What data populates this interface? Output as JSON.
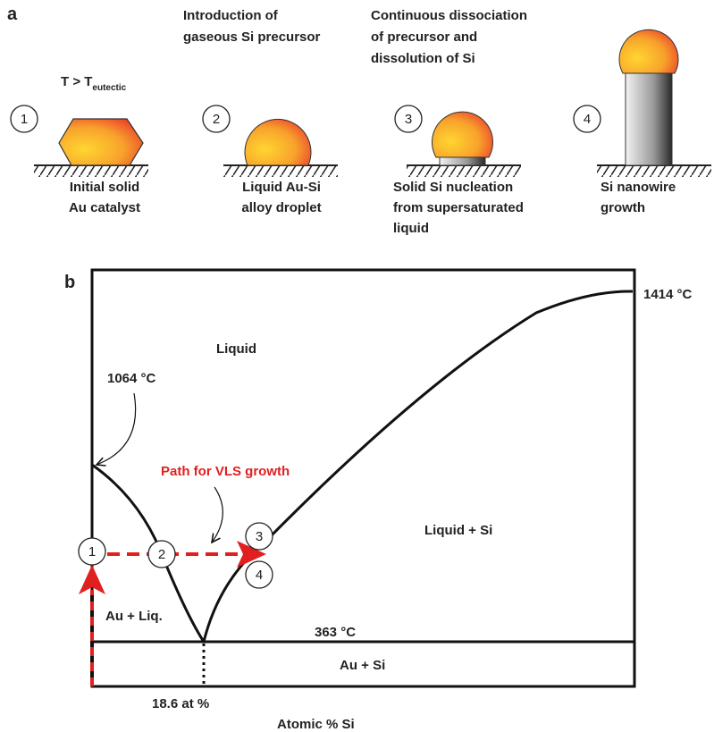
{
  "panel_a": {
    "label": "a",
    "condition": {
      "main": "T > T",
      "subscript": "eutectic"
    },
    "steps": [
      {
        "number": "1",
        "caption": [
          "Initial solid",
          "Au catalyst"
        ]
      },
      {
        "number": "2",
        "heading": [
          "Introduction of",
          "gaseous Si precursor"
        ],
        "caption": [
          "Liquid Au-Si",
          "alloy droplet"
        ]
      },
      {
        "number": "3",
        "heading": [
          "Continuous dissociation",
          "of precursor and",
          "dissolution of Si"
        ],
        "caption": [
          "Solid Si nucleation",
          "from supersaturated",
          "liquid"
        ]
      },
      {
        "number": "4",
        "caption": [
          "Si nanowire",
          "growth"
        ]
      }
    ]
  },
  "panel_b": {
    "label": "b",
    "si_melting": "1414 °C",
    "au_melting": "1064 °C",
    "eutectic_temperature": "363 °C",
    "eutectic_composition": "18.6 at %",
    "x_axis_label": "Atomic % Si",
    "path_label": "Path for VLS growth",
    "regions": {
      "liquid": "Liquid",
      "liquid_si": "Liquid + Si",
      "au_liquid": "Au + Liq.",
      "au_si": "Au + Si"
    },
    "points": [
      "1",
      "2",
      "3",
      "4"
    ]
  }
}
